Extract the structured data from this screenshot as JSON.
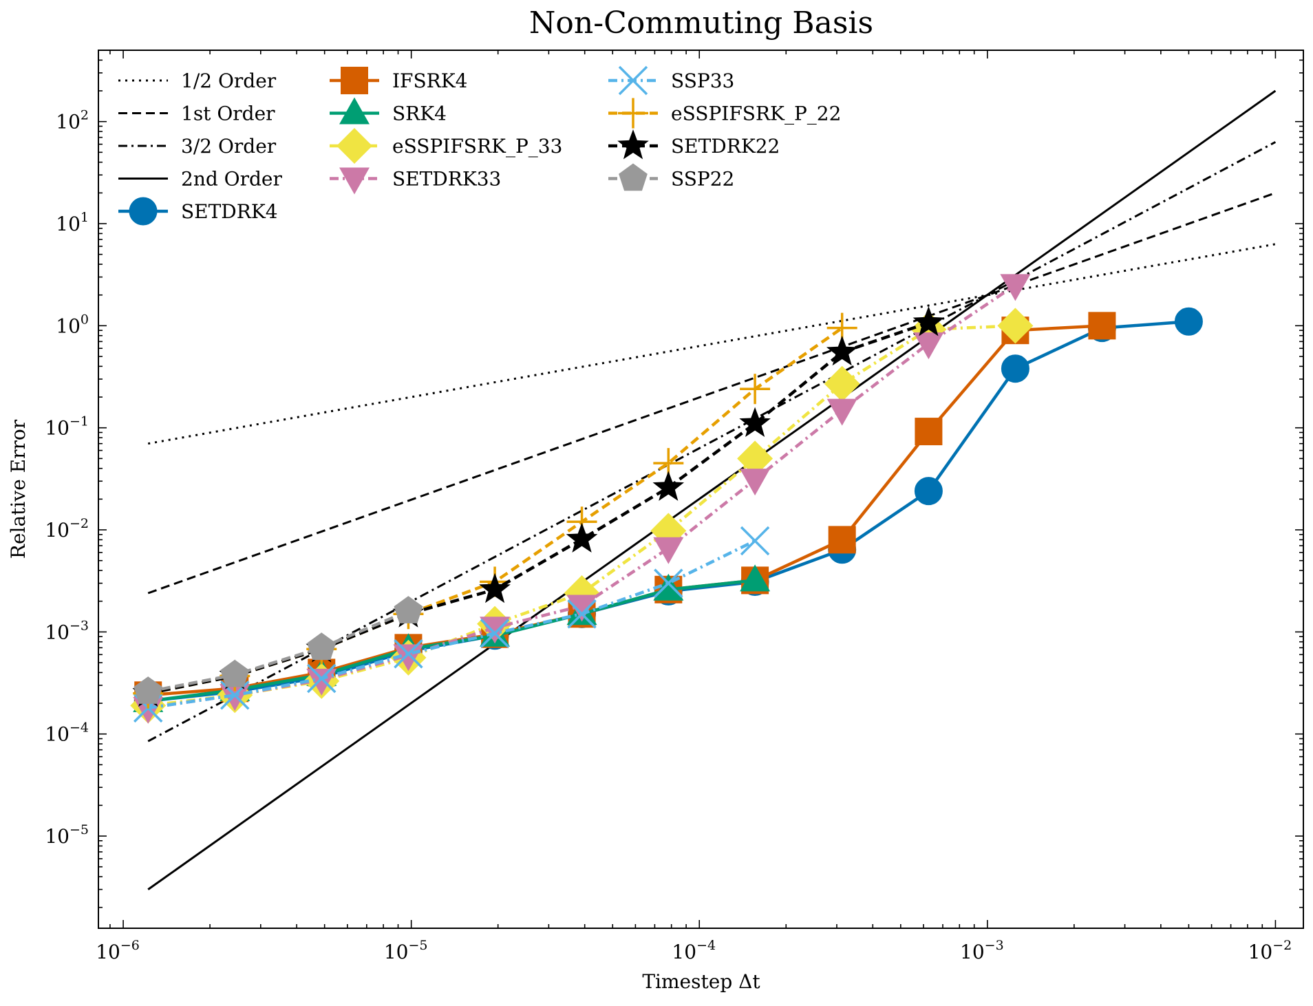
{
  "chart_data": {
    "type": "line",
    "title": "Non-Commuting Basis",
    "xlabel": "Timestep Δt",
    "ylabel": "Relative Error",
    "xscale": "log",
    "yscale": "log",
    "xlim": [
      8.2e-07,
      0.0125
    ],
    "ylim": [
      1.25e-06,
      500
    ],
    "grid": false,
    "legend_position": "top-left, 3 columns",
    "x_ticks": [
      {
        "value": 1e-06,
        "base": "10",
        "exp": "−6"
      },
      {
        "value": 1e-05,
        "base": "10",
        "exp": "−5"
      },
      {
        "value": 0.0001,
        "base": "10",
        "exp": "−4"
      },
      {
        "value": 0.001,
        "base": "10",
        "exp": "−3"
      },
      {
        "value": 0.01,
        "base": "10",
        "exp": "−2"
      }
    ],
    "y_ticks": [
      {
        "value": 1e-05,
        "base": "10",
        "exp": "−5"
      },
      {
        "value": 0.0001,
        "base": "10",
        "exp": "−4"
      },
      {
        "value": 0.001,
        "base": "10",
        "exp": "−3"
      },
      {
        "value": 0.01,
        "base": "10",
        "exp": "−2"
      },
      {
        "value": 0.1,
        "base": "10",
        "exp": "−1"
      },
      {
        "value": 1,
        "base": "10",
        "exp": "0"
      },
      {
        "value": 10,
        "base": "10",
        "exp": "1"
      },
      {
        "value": 100,
        "base": "10",
        "exp": "2"
      }
    ],
    "reference_lines": [
      {
        "name": "1/2 Order",
        "dash": "dotted",
        "x": [
          1.22e-06,
          0.01
        ],
        "y": [
          0.07,
          6.3
        ]
      },
      {
        "name": "1st Order",
        "dash": "dashed",
        "x": [
          1.22e-06,
          0.01
        ],
        "y": [
          0.0024,
          20
        ]
      },
      {
        "name": "3/2 Order",
        "dash": "dashdot",
        "x": [
          1.22e-06,
          0.01
        ],
        "y": [
          8.5e-05,
          63
        ]
      },
      {
        "name": "2nd Order",
        "dash": "solid",
        "x": [
          1.22e-06,
          0.01
        ],
        "y": [
          3e-06,
          200
        ]
      }
    ],
    "series": [
      {
        "name": "SETDRK4",
        "color": "#0072B2",
        "marker": "circle",
        "dash": "solid",
        "x": [
          1.22e-06,
          2.44e-06,
          4.88e-06,
          9.77e-06,
          1.95e-05,
          3.91e-05,
          7.81e-05,
          0.000156,
          0.000313,
          0.000625,
          0.00125,
          0.0025,
          0.005
        ],
        "y": [
          0.00021,
          0.00026,
          0.00036,
          0.00065,
          0.00092,
          0.0015,
          0.0025,
          0.0031,
          0.0064,
          0.024,
          0.38,
          0.95,
          1.1
        ]
      },
      {
        "name": "IFSRK4",
        "color": "#D55E00",
        "marker": "square",
        "dash": "solid",
        "x": [
          1.22e-06,
          2.44e-06,
          4.88e-06,
          9.77e-06,
          1.95e-05,
          3.91e-05,
          7.81e-05,
          0.000156,
          0.000313,
          0.000625,
          0.00125,
          0.0025
        ],
        "y": [
          0.00024,
          0.00028,
          0.0004,
          0.0007,
          0.00095,
          0.0015,
          0.0026,
          0.0032,
          0.008,
          0.092,
          0.9,
          1.0
        ]
      },
      {
        "name": "SRK4",
        "color": "#009E73",
        "marker": "triangle-up",
        "dash": "solid",
        "x": [
          1.22e-06,
          2.44e-06,
          4.88e-06,
          9.77e-06,
          1.95e-05,
          3.91e-05,
          7.81e-05,
          0.000156
        ],
        "y": [
          0.00021,
          0.00027,
          0.00038,
          0.00068,
          0.00092,
          0.0015,
          0.0026,
          0.0032
        ]
      },
      {
        "name": "eSSPIFSRK_P_33",
        "color": "#F0E442",
        "marker": "diamond",
        "dash": "dashdot",
        "x": [
          1.22e-06,
          2.44e-06,
          4.88e-06,
          9.77e-06,
          1.95e-05,
          3.91e-05,
          7.81e-05,
          0.000156,
          0.000313,
          0.000625,
          0.00125
        ],
        "y": [
          0.00019,
          0.00024,
          0.00033,
          0.00056,
          0.0012,
          0.0024,
          0.0098,
          0.05,
          0.27,
          0.92,
          1.0
        ]
      },
      {
        "name": "SETDRK33",
        "color": "#CC79A7",
        "marker": "triangle-down",
        "dash": "dashdot",
        "x": [
          1.22e-06,
          2.44e-06,
          4.88e-06,
          9.77e-06,
          1.95e-05,
          3.91e-05,
          7.81e-05,
          0.000156,
          0.000313,
          0.000625,
          0.00125
        ],
        "y": [
          0.00018,
          0.00024,
          0.00034,
          0.00059,
          0.0011,
          0.0018,
          0.0066,
          0.031,
          0.15,
          0.67,
          2.5
        ]
      },
      {
        "name": "SSP33",
        "color": "#56B4E9",
        "marker": "x",
        "dash": "dashdot",
        "x": [
          1.22e-06,
          2.44e-06,
          4.88e-06,
          9.77e-06,
          1.95e-05,
          3.91e-05,
          7.81e-05,
          0.000156
        ],
        "y": [
          0.00018,
          0.00024,
          0.00035,
          0.00061,
          0.00097,
          0.0015,
          0.003,
          0.0078
        ]
      },
      {
        "name": "eSSPIFSRK_P_22",
        "color": "#E69F00",
        "marker": "plus",
        "dash": "dashed",
        "x": [
          1.22e-06,
          2.44e-06,
          4.88e-06,
          9.77e-06,
          1.95e-05,
          3.91e-05,
          7.81e-05,
          0.000156,
          0.000313
        ],
        "y": [
          0.00025,
          0.00037,
          0.00068,
          0.0015,
          0.0031,
          0.012,
          0.045,
          0.24,
          0.95
        ]
      },
      {
        "name": "SETDRK22",
        "color": "#000000",
        "marker": "star",
        "dash": "dashed",
        "x": [
          1.22e-06,
          2.44e-06,
          4.88e-06,
          9.77e-06,
          1.95e-05,
          3.91e-05,
          7.81e-05,
          0.000156,
          0.000313,
          0.000625
        ],
        "y": [
          0.00025,
          0.00037,
          0.00068,
          0.0015,
          0.0026,
          0.0081,
          0.026,
          0.11,
          0.55,
          1.07
        ]
      },
      {
        "name": "SSP22",
        "color": "#999999",
        "marker": "pentagon",
        "dash": "dashed",
        "x": [
          1.22e-06,
          2.44e-06,
          4.88e-06,
          9.77e-06
        ],
        "y": [
          0.00026,
          0.00038,
          0.0007,
          0.0016
        ]
      }
    ],
    "legend": {
      "columns": [
        [
          "1/2 Order",
          "1st Order",
          "3/2 Order",
          "2nd Order",
          "SETDRK4"
        ],
        [
          "IFSRK4",
          "SRK4",
          "eSSPIFSRK_P_33",
          "SETDRK33"
        ],
        [
          "SSP33",
          "eSSPIFSRK_P_22",
          "SETDRK22",
          "SSP22"
        ]
      ],
      "labels": {
        "1/2 Order": "1/2 Order",
        "1st Order": "1st Order",
        "3/2 Order": "3/2 Order",
        "2nd Order": "2nd Order",
        "SETDRK4": "SETDRK4",
        "IFSRK4": "IFSRK4",
        "SRK4": "SRK4",
        "eSSPIFSRK_P_33": "eSSPIFSRK_P_33",
        "SETDRK33": "SETDRK33",
        "SSP33": "SSP33",
        "eSSPIFSRK_P_22": "eSSPIFSRK_P_22",
        "SETDRK22": "SETDRK22",
        "SSP22": "SSP22"
      }
    }
  }
}
